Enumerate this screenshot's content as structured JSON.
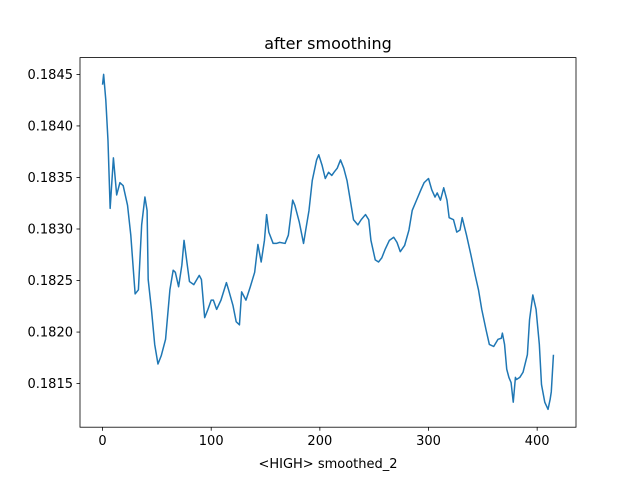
{
  "chart_data": {
    "type": "line",
    "title": "after smoothing",
    "xlabel": "<HIGH> smoothed_2",
    "color": "#1f77b4",
    "x": [
      0,
      1,
      3,
      5,
      7,
      10,
      13,
      16,
      19,
      23,
      26,
      29,
      30,
      33,
      36,
      39,
      41,
      42,
      45,
      48,
      51,
      54,
      58,
      62,
      65,
      67,
      70,
      73,
      75,
      78,
      80,
      84,
      89,
      91,
      94,
      97,
      100,
      102,
      105,
      109,
      114,
      116,
      120,
      123,
      126,
      128,
      132,
      136,
      140,
      143,
      146,
      149,
      151,
      153,
      157,
      160,
      163,
      168,
      171,
      175,
      177,
      181,
      185,
      187,
      190,
      193,
      197,
      199,
      202,
      205,
      208,
      211,
      213,
      216,
      219,
      222,
      225,
      228,
      231,
      235,
      238,
      242,
      245,
      247,
      251,
      254,
      257,
      260,
      264,
      268,
      271,
      274,
      278,
      282,
      285,
      289,
      293,
      296,
      300,
      303,
      306,
      308,
      311,
      314,
      317,
      319,
      323,
      326,
      329,
      331,
      335,
      339,
      343,
      346,
      349,
      353,
      356,
      360,
      364,
      367,
      368,
      370,
      372,
      374,
      376,
      378,
      380,
      381,
      384,
      387,
      391,
      393,
      396,
      399,
      402,
      404,
      407,
      410,
      412,
      413,
      415
    ],
    "values": [
      0.1844,
      0.1845,
      0.18425,
      0.18386,
      0.1832,
      0.18369,
      0.18333,
      0.18345,
      0.18342,
      0.18323,
      0.18294,
      0.18251,
      0.18237,
      0.18241,
      0.18304,
      0.18331,
      0.18318,
      0.18251,
      0.18222,
      0.18188,
      0.18169,
      0.18177,
      0.18193,
      0.18241,
      0.1826,
      0.18258,
      0.18244,
      0.18265,
      0.18289,
      0.18265,
      0.18249,
      0.18246,
      0.18255,
      0.18251,
      0.18214,
      0.18222,
      0.18231,
      0.18231,
      0.18222,
      0.18231,
      0.18248,
      0.18241,
      0.18226,
      0.1821,
      0.18207,
      0.18239,
      0.18231,
      0.18244,
      0.18258,
      0.18285,
      0.18268,
      0.18289,
      0.18314,
      0.18297,
      0.18286,
      0.18286,
      0.18287,
      0.18286,
      0.18294,
      0.18328,
      0.18323,
      0.18307,
      0.18286,
      0.18299,
      0.18318,
      0.18347,
      0.18367,
      0.18372,
      0.18362,
      0.18349,
      0.18355,
      0.18352,
      0.18355,
      0.18359,
      0.18367,
      0.18359,
      0.18347,
      0.18328,
      0.18309,
      0.18304,
      0.18309,
      0.18314,
      0.18309,
      0.18289,
      0.1827,
      0.18268,
      0.18272,
      0.1828,
      0.18289,
      0.18292,
      0.18287,
      0.18278,
      0.18284,
      0.18299,
      0.18318,
      0.18328,
      0.18338,
      0.18345,
      0.18349,
      0.18338,
      0.18331,
      0.18335,
      0.18328,
      0.1834,
      0.18328,
      0.18311,
      0.18309,
      0.18297,
      0.18299,
      0.18311,
      0.18294,
      0.18275,
      0.18255,
      0.18241,
      0.18222,
      0.18202,
      0.18188,
      0.18186,
      0.18193,
      0.18194,
      0.18199,
      0.18188,
      0.18164,
      0.18156,
      0.18151,
      0.18132,
      0.18156,
      0.18154,
      0.18156,
      0.18161,
      0.18178,
      0.18212,
      0.18236,
      0.18222,
      0.18188,
      0.18149,
      0.18132,
      0.18125,
      0.18135,
      0.18142,
      0.18178
    ],
    "xlim": [
      -20.75,
      435.75
    ],
    "ylim": [
      0.181077,
      0.184663
    ],
    "xticks": [
      0,
      100,
      200,
      300,
      400
    ],
    "yticks": [
      0.1815,
      {
        "value": 0.182,
        "label": "0.1820"
      },
      0.1825,
      {
        "value": 0.183,
        "label": "0.1830"
      },
      0.1835,
      {
        "value": 0.184,
        "label": "0.1840"
      },
      0.1845
    ],
    "grid": false
  }
}
